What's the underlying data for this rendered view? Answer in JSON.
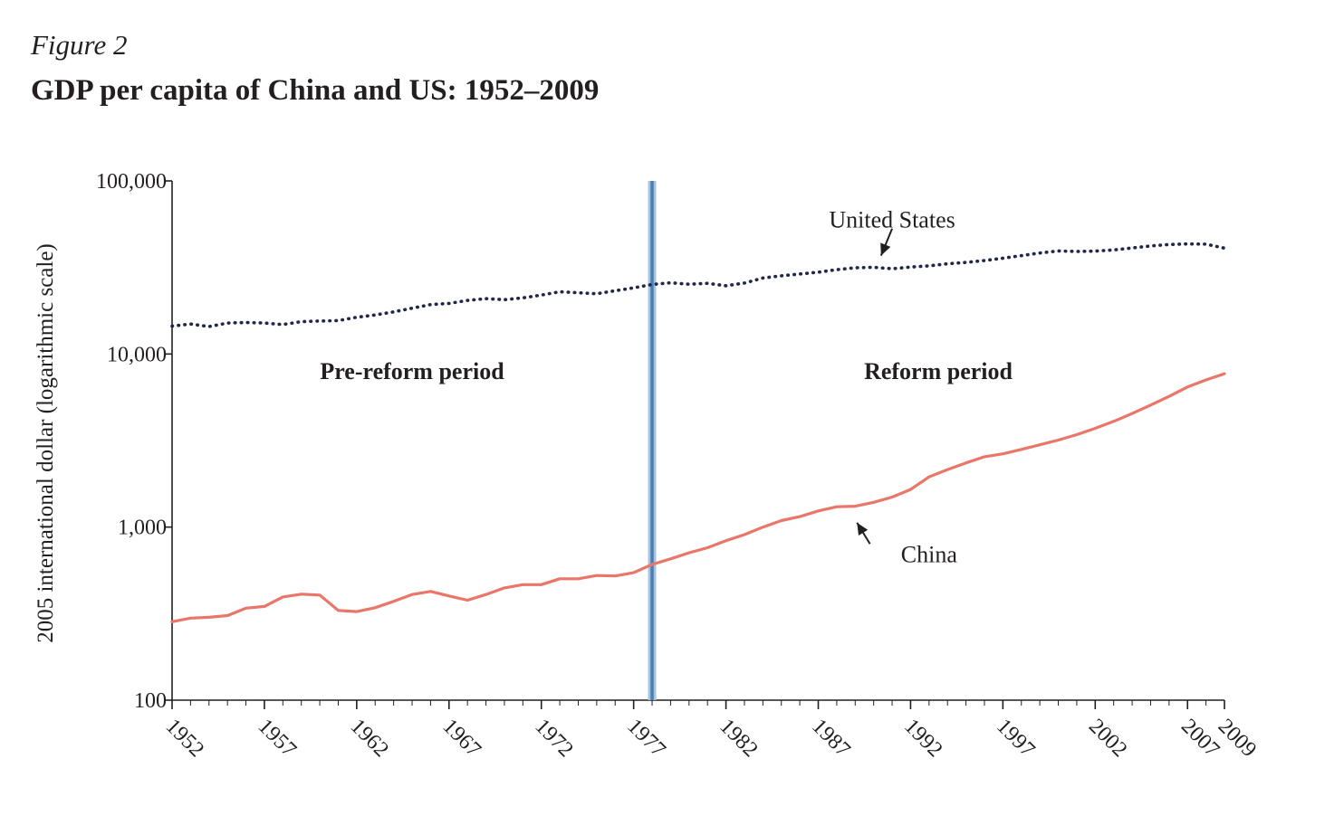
{
  "figure": {
    "label": "Figure 2"
  },
  "chart_data": {
    "type": "line",
    "title": "GDP per capita of China and US: 1952–2009",
    "ylabel": "2005 international dollar (logarithmic scale)",
    "xlabel": "",
    "yscale": "log",
    "ylim": [
      100,
      100000
    ],
    "xlim": [
      1952,
      2009
    ],
    "grid": false,
    "y_ticks": [
      100,
      1000,
      10000,
      100000
    ],
    "y_tick_labels": [
      "100",
      "1,000",
      "10,000",
      "100,000"
    ],
    "x_ticks": [
      1952,
      1957,
      1962,
      1967,
      1972,
      1977,
      1982,
      1987,
      1992,
      1997,
      2002,
      2007,
      2009
    ],
    "x_tick_labels": [
      "1952",
      "1957",
      "1962",
      "1967",
      "1972",
      "1977",
      "1982",
      "1987",
      "1992",
      "1997",
      "2002",
      "2007",
      "2009"
    ],
    "reference_line": {
      "x": 1978,
      "color": "#4a7fb5"
    },
    "regions": [
      {
        "label": "Pre-reform period",
        "x_center": 1965,
        "y": 8000
      },
      {
        "label": "Reform period",
        "x_center": 1993.5,
        "y": 8000
      }
    ],
    "series": [
      {
        "name": "United States",
        "color": "#22264a",
        "style": "dotted",
        "label_year": 1991,
        "label_value": 60000,
        "arrow_from": [
          1991,
          53000
        ],
        "arrow_to": [
          1990.4,
          37000
        ],
        "x": [
          1952,
          1953,
          1954,
          1955,
          1956,
          1957,
          1958,
          1959,
          1960,
          1961,
          1962,
          1963,
          1964,
          1965,
          1966,
          1967,
          1968,
          1969,
          1970,
          1971,
          1972,
          1973,
          1974,
          1975,
          1976,
          1977,
          1978,
          1979,
          1980,
          1981,
          1982,
          1983,
          1984,
          1985,
          1986,
          1987,
          1988,
          1989,
          1990,
          1991,
          1992,
          1993,
          1994,
          1995,
          1996,
          1997,
          1998,
          1999,
          2000,
          2001,
          2002,
          2003,
          2004,
          2005,
          2006,
          2007,
          2008,
          2009
        ],
        "values": [
          14500,
          14900,
          14400,
          15100,
          15200,
          15100,
          14800,
          15400,
          15500,
          15600,
          16300,
          16800,
          17500,
          18400,
          19300,
          19600,
          20400,
          20900,
          20600,
          21100,
          21900,
          22900,
          22600,
          22300,
          23200,
          24100,
          25200,
          25800,
          25300,
          25600,
          24800,
          25700,
          27500,
          28300,
          29000,
          29700,
          30700,
          31500,
          31700,
          31100,
          31800,
          32300,
          33200,
          33800,
          34700,
          35800,
          37000,
          38300,
          39400,
          39100,
          39300,
          39900,
          41000,
          42100,
          42900,
          43300,
          43100,
          40900
        ]
      },
      {
        "name": "China",
        "color": "#e97669",
        "style": "solid",
        "label_year": 1993,
        "label_value": 700,
        "arrow_from": [
          1989.8,
          800
        ],
        "arrow_to": [
          1989.1,
          1060
        ],
        "x": [
          1952,
          1953,
          1954,
          1955,
          1956,
          1957,
          1958,
          1959,
          1960,
          1961,
          1962,
          1963,
          1964,
          1965,
          1966,
          1967,
          1968,
          1969,
          1970,
          1971,
          1972,
          1973,
          1974,
          1975,
          1976,
          1977,
          1978,
          1979,
          1980,
          1981,
          1982,
          1983,
          1984,
          1985,
          1986,
          1987,
          1988,
          1989,
          1990,
          1991,
          1992,
          1993,
          1994,
          1995,
          1996,
          1997,
          1998,
          1999,
          2000,
          2001,
          2002,
          2003,
          2004,
          2005,
          2006,
          2007,
          2008,
          2009
        ],
        "values": [
          284,
          298,
          301,
          308,
          340,
          348,
          395,
          410,
          405,
          330,
          325,
          342,
          372,
          408,
          425,
          400,
          378,
          408,
          445,
          465,
          465,
          503,
          503,
          525,
          522,
          545,
          608,
          655,
          710,
          760,
          835,
          905,
          1000,
          1090,
          1150,
          1240,
          1310,
          1320,
          1390,
          1490,
          1650,
          1950,
          2150,
          2350,
          2550,
          2650,
          2810,
          2990,
          3180,
          3420,
          3720,
          4080,
          4530,
          5070,
          5690,
          6450,
          7080,
          7700
        ]
      }
    ]
  }
}
